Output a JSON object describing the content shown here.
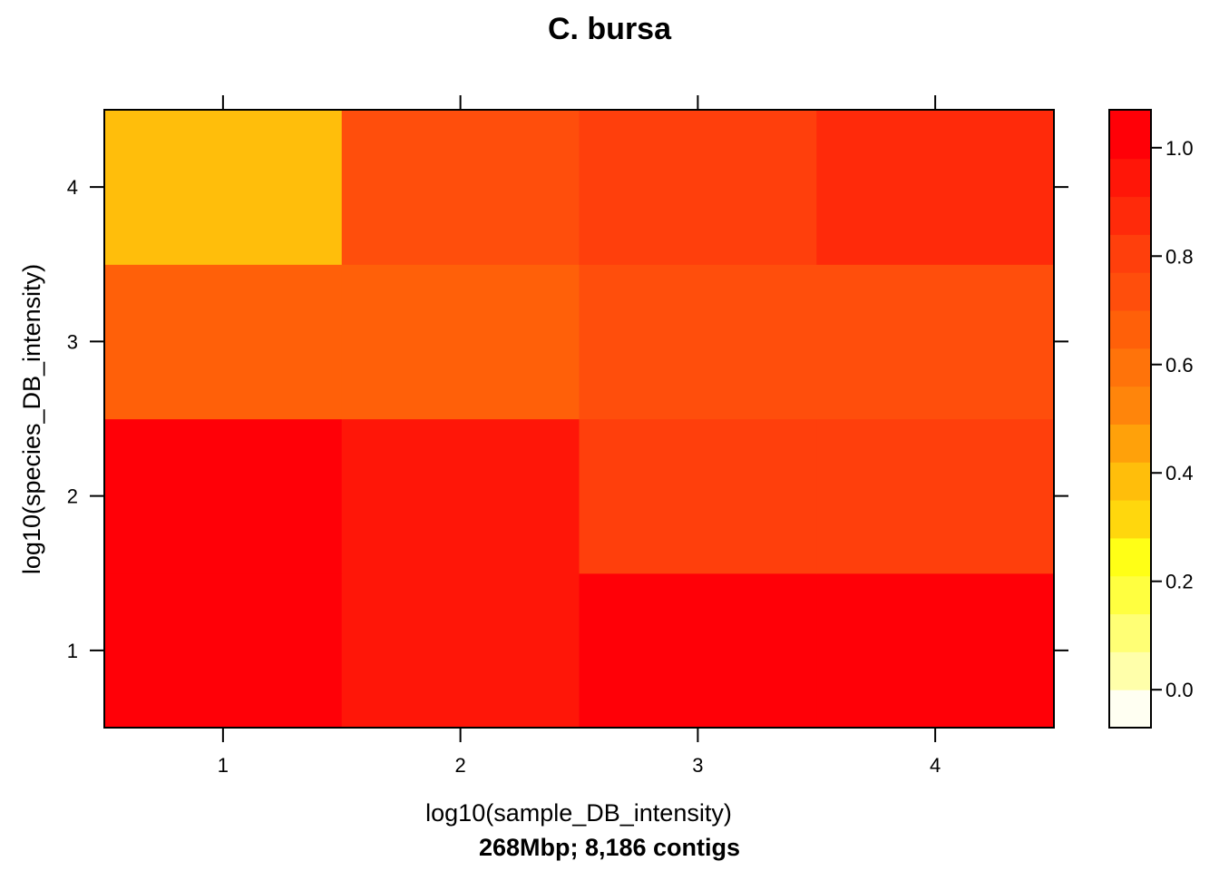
{
  "chart_data": {
    "type": "heatmap",
    "title": "C. bursa",
    "xlabel": "log10(sample_DB_intensity)",
    "ylabel": "log10(species_DB_intensity)",
    "subtitle": "268Mbp; 8,186 contigs",
    "x_categories": [
      "1",
      "2",
      "3",
      "4"
    ],
    "y_categories": [
      "1",
      "2",
      "3",
      "4"
    ],
    "values": [
      [
        1.0,
        0.95,
        1.0,
        1.0
      ],
      [
        1.0,
        0.95,
        0.8,
        0.8
      ],
      [
        0.65,
        0.65,
        0.7,
        0.7
      ],
      [
        0.4,
        0.7,
        0.8,
        0.85
      ]
    ],
    "colorbar": {
      "range": [
        -0.07,
        1.07
      ],
      "ticks": [
        "0.0",
        "0.2",
        "0.4",
        "0.6",
        "0.8",
        "1.0"
      ],
      "tick_values": [
        0.0,
        0.2,
        0.4,
        0.6,
        0.8,
        1.0
      ],
      "bins": [
        {
          "from": -0.07,
          "to": 0.0,
          "color": "#FFFFF2"
        },
        {
          "from": 0.0,
          "to": 0.07,
          "color": "#FFFFAA"
        },
        {
          "from": 0.07,
          "to": 0.14,
          "color": "#FFFF75"
        },
        {
          "from": 0.14,
          "to": 0.21,
          "color": "#FFFF40"
        },
        {
          "from": 0.21,
          "to": 0.28,
          "color": "#FFFF16"
        },
        {
          "from": 0.28,
          "to": 0.35,
          "color": "#FFD70D"
        },
        {
          "from": 0.35,
          "to": 0.42,
          "color": "#FFBE0B"
        },
        {
          "from": 0.42,
          "to": 0.49,
          "color": "#FFA10A"
        },
        {
          "from": 0.49,
          "to": 0.56,
          "color": "#FF850B"
        },
        {
          "from": 0.56,
          "to": 0.63,
          "color": "#FF730A"
        },
        {
          "from": 0.63,
          "to": 0.7,
          "color": "#FF6009"
        },
        {
          "from": 0.7,
          "to": 0.77,
          "color": "#FF4E0C"
        },
        {
          "from": 0.77,
          "to": 0.84,
          "color": "#FF3F0C"
        },
        {
          "from": 0.84,
          "to": 0.91,
          "color": "#FF2A0A"
        },
        {
          "from": 0.91,
          "to": 0.98,
          "color": "#FF1608"
        },
        {
          "from": 0.98,
          "to": 1.07,
          "color": "#FF0007"
        }
      ]
    }
  }
}
